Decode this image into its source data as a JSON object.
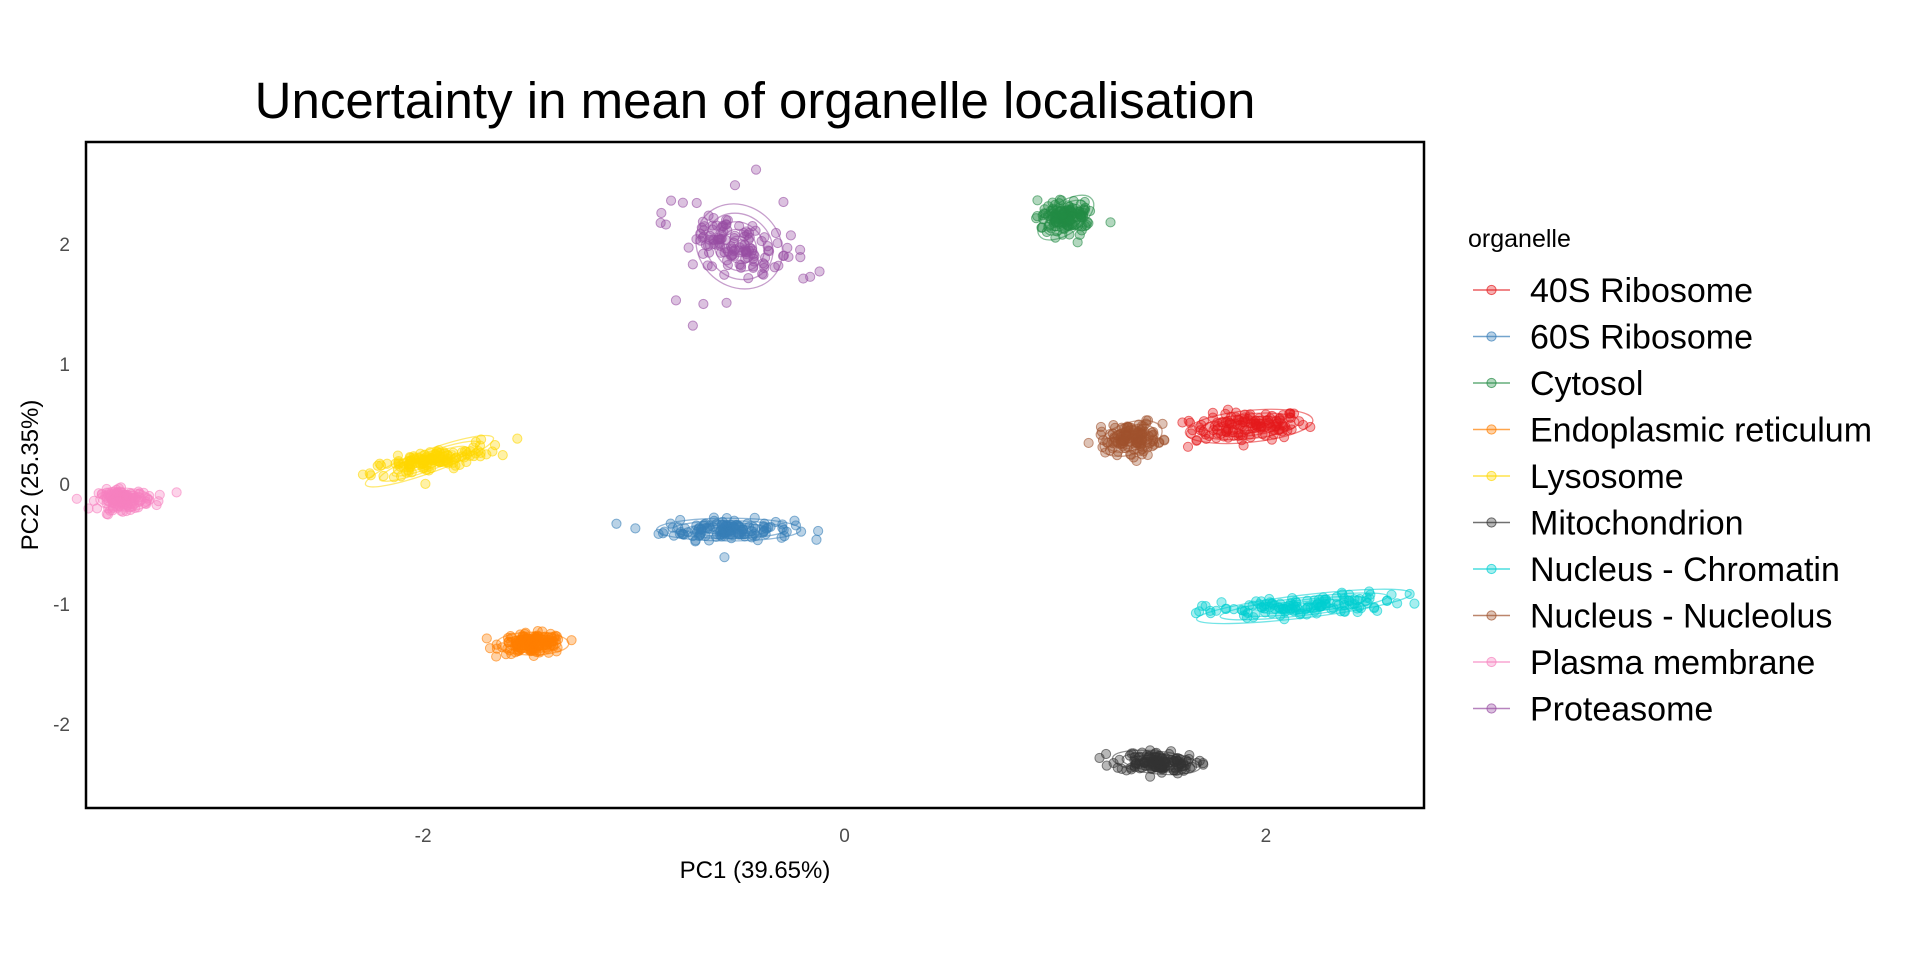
{
  "chart_data": {
    "type": "scatter",
    "title": "Uncertainty in mean of organelle localisation",
    "xlabel": "PC1 (39.65%)",
    "ylabel": "PC2 (25.35%)",
    "xlim": [
      -3.6,
      2.75
    ],
    "ylim": [
      -2.7,
      2.85
    ],
    "x_ticks": [
      -2,
      0,
      2
    ],
    "y_ticks": [
      -2,
      -1,
      0,
      1,
      2
    ],
    "grid": false,
    "legend": {
      "title": "organelle",
      "position": "right"
    },
    "series": [
      {
        "name": "40S Ribosome",
        "color": "#E41A1C",
        "center": [
          1.92,
          0.48
        ],
        "spread": [
          0.16,
          0.07
        ],
        "tilt": 0.1,
        "outliers": [
          [
            1.64,
            0.51
          ],
          [
            1.67,
            0.36
          ],
          [
            1.63,
            0.31
          ],
          [
            1.73,
            0.4
          ]
        ]
      },
      {
        "name": "60S Ribosome",
        "color": "#377EB8",
        "center": [
          -0.55,
          -0.38
        ],
        "spread": [
          0.18,
          0.05
        ],
        "tilt": 0.0,
        "outliers": [
          [
            -0.81,
            -0.43
          ],
          [
            -0.79,
            -0.36
          ],
          [
            -0.78,
            -0.3
          ],
          [
            -0.38,
            -0.33
          ],
          [
            -0.57,
            -0.61
          ],
          [
            -0.62,
            -0.28
          ]
        ]
      },
      {
        "name": "Cytosol",
        "color": "#238B45",
        "center": [
          1.05,
          2.22
        ],
        "spread": [
          0.08,
          0.07
        ],
        "tilt": 0.6,
        "outliers": [
          [
            0.96,
            2.1
          ],
          [
            1.14,
            2.35
          ]
        ]
      },
      {
        "name": "Endoplasmic reticulum",
        "color": "#FF7F00",
        "center": [
          -1.48,
          -1.33
        ],
        "spread": [
          0.09,
          0.05
        ],
        "tilt": 0.0,
        "outliers": []
      },
      {
        "name": "Lysosome",
        "color": "#FFD700",
        "center": [
          -1.97,
          0.19
        ],
        "spread": [
          0.17,
          0.05
        ],
        "tilt": 0.35,
        "outliers": [
          [
            -1.75,
            0.35
          ],
          [
            -1.73,
            0.32
          ],
          [
            -2.12,
            0.12
          ]
        ]
      },
      {
        "name": "Mitochondrion",
        "color": "#333333",
        "center": [
          1.48,
          -2.32
        ],
        "spread": [
          0.11,
          0.05
        ],
        "tilt": -0.1,
        "outliers": [
          [
            1.45,
            -2.22
          ],
          [
            1.61,
            -2.39
          ]
        ]
      },
      {
        "name": "Nucleus - Chromatin",
        "color": "#00CED1",
        "center": [
          2.18,
          -1.02
        ],
        "spread": [
          0.27,
          0.05
        ],
        "tilt": 0.12,
        "outliers": [
          [
            1.94,
            -1.11
          ],
          [
            2.42,
            -0.96
          ]
        ]
      },
      {
        "name": "Nucleus - Nucleolus",
        "color": "#A0522D",
        "center": [
          1.36,
          0.38
        ],
        "spread": [
          0.08,
          0.07
        ],
        "tilt": 0.3,
        "outliers": [
          [
            1.26,
            0.28
          ],
          [
            1.44,
            0.53
          ]
        ]
      },
      {
        "name": "Plasma membrane",
        "color": "#F781BF",
        "center": [
          -3.42,
          -0.13
        ],
        "spread": [
          0.07,
          0.05
        ],
        "tilt": 0.0,
        "outliers": [
          [
            -3.25,
            -0.09
          ],
          [
            -3.17,
            -0.07
          ],
          [
            -3.3,
            -0.1
          ]
        ]
      },
      {
        "name": "Proteasome",
        "color": "#984EA3",
        "center": [
          -0.5,
          1.98
        ],
        "spread": [
          0.1,
          0.2
        ],
        "tilt": 0.85,
        "outliers": [
          [
            -0.72,
            1.32
          ],
          [
            -0.8,
            1.53
          ],
          [
            -0.67,
            1.5
          ],
          [
            -0.72,
            1.83
          ],
          [
            -0.74,
            1.97
          ],
          [
            -0.42,
            2.62
          ],
          [
            -0.52,
            2.49
          ],
          [
            -0.56,
            1.51
          ],
          [
            -0.29,
            2.35
          ]
        ]
      }
    ]
  }
}
